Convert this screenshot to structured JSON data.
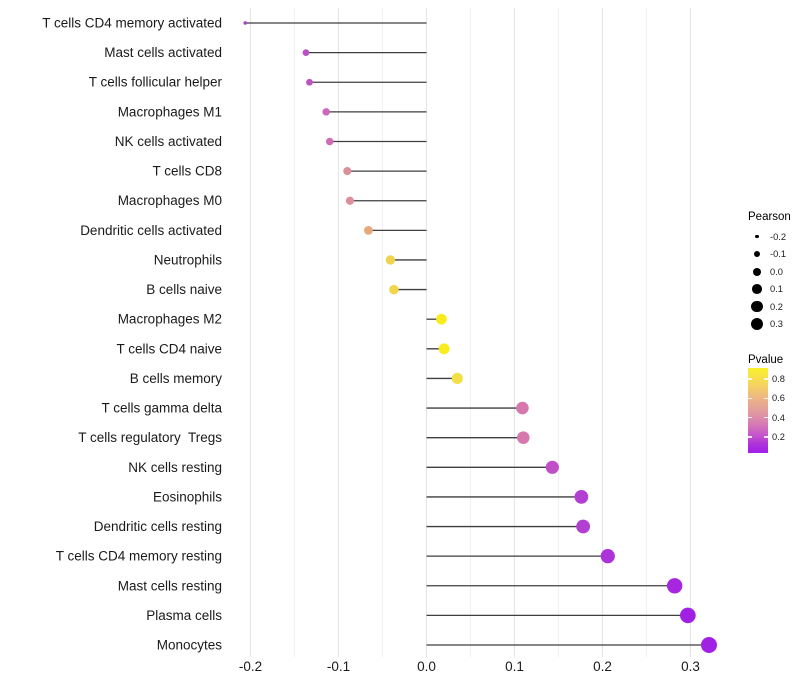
{
  "chart_data": {
    "type": "lollipop",
    "title": "",
    "xlabel": "",
    "ylabel": "",
    "grid": "vertical-only",
    "x_axis": {
      "range": [
        -0.233,
        0.347
      ],
      "major_ticks": [
        -0.2,
        -0.1,
        0.0,
        0.1,
        0.2,
        0.3
      ],
      "tick_labels": [
        "-0.2",
        "-0.1",
        "0.0",
        "0.1",
        "0.2",
        "0.3"
      ],
      "minor_step": 0.05
    },
    "rows": [
      {
        "label": "T cells CD4 memory activated",
        "pearson": -0.206,
        "pvalue": 0.15,
        "color": "#A83BC8"
      },
      {
        "label": "Mast cells activated",
        "pearson": -0.137,
        "pvalue": 0.25,
        "color": "#BC4EC6"
      },
      {
        "label": "T cells follicular helper",
        "pearson": -0.133,
        "pvalue": 0.26,
        "color": "#BE52C4"
      },
      {
        "label": "Macrophages M1",
        "pearson": -0.114,
        "pvalue": 0.32,
        "color": "#CB66BA"
      },
      {
        "label": "NK cells activated",
        "pearson": -0.11,
        "pvalue": 0.33,
        "color": "#CE6DB6"
      },
      {
        "label": "T cells CD8",
        "pearson": -0.09,
        "pvalue": 0.47,
        "color": "#DB8F9B"
      },
      {
        "label": "Macrophages M0",
        "pearson": -0.087,
        "pvalue": 0.48,
        "color": "#DC8F97"
      },
      {
        "label": "Dendritic cells activated",
        "pearson": -0.066,
        "pvalue": 0.58,
        "color": "#E7A878"
      },
      {
        "label": "Neutrophils",
        "pearson": -0.041,
        "pvalue": 0.76,
        "color": "#F0D44E"
      },
      {
        "label": "B cells naive",
        "pearson": -0.037,
        "pvalue": 0.78,
        "color": "#F1D64A"
      },
      {
        "label": "Macrophages M2",
        "pearson": 0.017,
        "pvalue": 0.9,
        "color": "#F8EC1C"
      },
      {
        "label": "T cells CD4 naive",
        "pearson": 0.02,
        "pvalue": 0.9,
        "color": "#F8EC1C"
      },
      {
        "label": "B cells memory",
        "pearson": 0.035,
        "pvalue": 0.82,
        "color": "#F2DF45"
      },
      {
        "label": "T cells gamma delta",
        "pearson": 0.109,
        "pvalue": 0.34,
        "color": "#D678AE"
      },
      {
        "label": "T cells regulatory  Tregs",
        "pearson": 0.11,
        "pvalue": 0.34,
        "color": "#D678AE"
      },
      {
        "label": "NK cells resting",
        "pearson": 0.143,
        "pvalue": 0.21,
        "color": "#C14FC8"
      },
      {
        "label": "Eosinophils",
        "pearson": 0.176,
        "pvalue": 0.14,
        "color": "#B23FD2"
      },
      {
        "label": "Dendritic cells resting",
        "pearson": 0.178,
        "pvalue": 0.14,
        "color": "#B23FD2"
      },
      {
        "label": "T cells CD4 memory resting",
        "pearson": 0.206,
        "pvalue": 0.1,
        "color": "#AC32DA"
      },
      {
        "label": "Mast cells resting",
        "pearson": 0.282,
        "pvalue": 0.06,
        "color": "#A726E0"
      },
      {
        "label": "Plasma cells",
        "pearson": 0.297,
        "pvalue": 0.05,
        "color": "#A21FE4"
      },
      {
        "label": "Monocytes",
        "pearson": 0.321,
        "pvalue": 0.04,
        "color": "#A020E4"
      }
    ],
    "legend_size": {
      "title": "Pearson",
      "values": [
        -0.2,
        -0.1,
        0.0,
        0.1,
        0.2,
        0.3
      ],
      "labels": [
        "-0.2",
        "-0.1",
        "0.0",
        "0.1",
        "0.2",
        "0.3"
      ],
      "dot_color": "#000000"
    },
    "legend_color": {
      "title": "Pvalue",
      "tick_labels": [
        "0.8",
        "0.6",
        "0.4",
        "0.2"
      ],
      "gradient_top_color": "#F9F02A",
      "gradient_bottom_color": "#A21EEC",
      "range": [
        0.04,
        0.92
      ]
    },
    "layout_hints": {
      "stem_color": "#3F3F3F",
      "gridline_major_color": "#E4E4E4",
      "gridline_minor_color": "#EFEFEF",
      "axis_text_color": "#1a1a1a"
    }
  }
}
